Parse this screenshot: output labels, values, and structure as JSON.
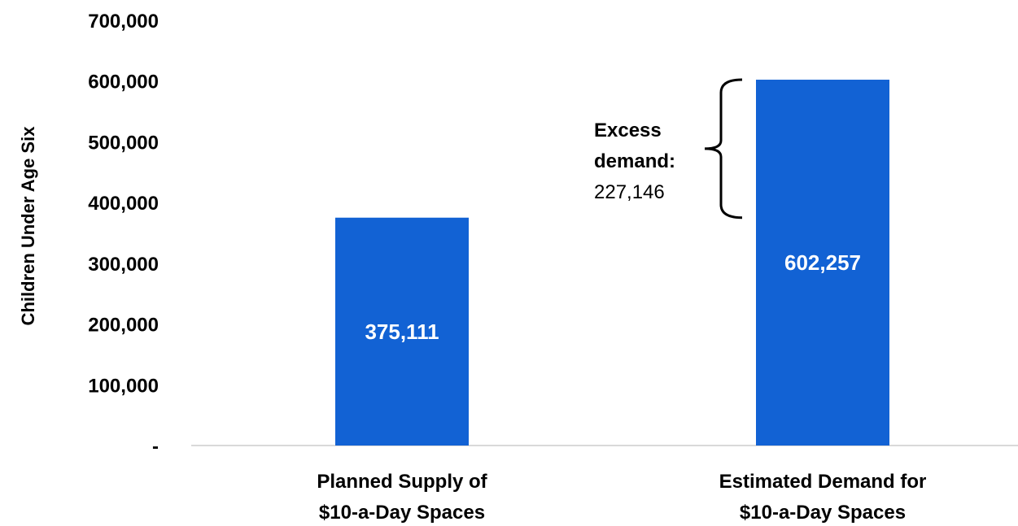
{
  "chart_data": {
    "type": "bar",
    "categories": [
      [
        "Planned Supply of",
        "$10-a-Day Spaces"
      ],
      [
        "Estimated Demand for",
        "$10-a-Day Spaces"
      ]
    ],
    "values": [
      375111,
      602257
    ],
    "data_labels": [
      "375,111",
      "602,257"
    ],
    "ylabel": "Children Under Age Six",
    "ylim": [
      0,
      700000
    ],
    "yticks": [
      0,
      100000,
      200000,
      300000,
      400000,
      500000,
      600000,
      700000
    ],
    "ytick_labels": [
      "-",
      "100,000",
      "200,000",
      "300,000",
      "400,000",
      "500,000",
      "600,000",
      "700,000"
    ],
    "grid": false,
    "bar_color": "#1262d4",
    "annotation": {
      "line1": "Excess",
      "line2": "demand:",
      "value_text": "227,146",
      "value": 227146
    }
  }
}
